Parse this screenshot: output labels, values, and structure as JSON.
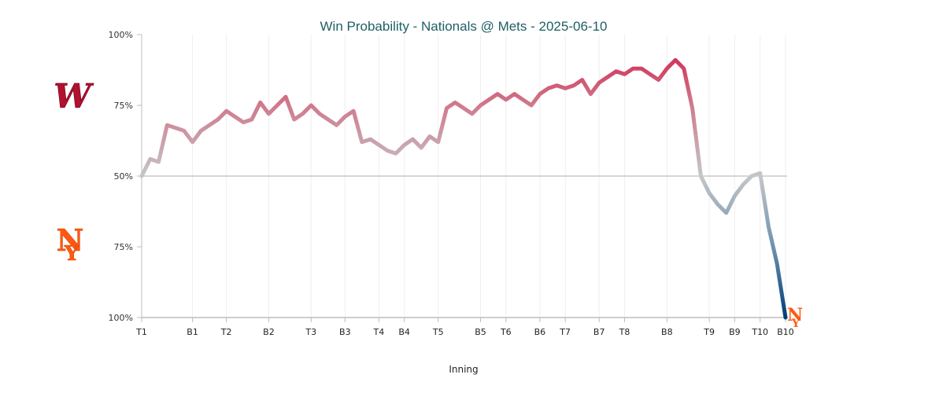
{
  "chart_data": {
    "type": "line",
    "title": "Win Probability - Nationals @ Mets - 2025-06-10",
    "xlabel": "Inning",
    "ylabel": "",
    "ylim": [
      0,
      100
    ],
    "ytick_labels": [
      "100%",
      "75%",
      "50%",
      "75%",
      "100%"
    ],
    "xtick_labels": [
      {
        "label": "T1",
        "x": 0
      },
      {
        "label": "B1",
        "x": 6
      },
      {
        "label": "T2",
        "x": 10
      },
      {
        "label": "B2",
        "x": 15
      },
      {
        "label": "T3",
        "x": 20
      },
      {
        "label": "B3",
        "x": 24
      },
      {
        "label": "T4",
        "x": 28
      },
      {
        "label": "B4",
        "x": 31
      },
      {
        "label": "T5",
        "x": 35
      },
      {
        "label": "B5",
        "x": 40
      },
      {
        "label": "T6",
        "x": 43
      },
      {
        "label": "B6",
        "x": 47
      },
      {
        "label": "T7",
        "x": 50
      },
      {
        "label": "B7",
        "x": 54
      },
      {
        "label": "T8",
        "x": 57
      },
      {
        "label": "B8",
        "x": 62
      },
      {
        "label": "T9",
        "x": 67
      },
      {
        "label": "B9",
        "x": 70
      },
      {
        "label": "T10",
        "x": 73
      },
      {
        "label": "B10",
        "x": 76
      }
    ],
    "grid": true,
    "teams": {
      "away": {
        "logo": "nationals-logo",
        "color": "#c41e3a"
      },
      "home": {
        "logo": "mets-logo",
        "color": "#ff5910"
      }
    },
    "colors": {
      "away": "#c8102e",
      "neutral": "#c4c4c4",
      "home": "#003f7f"
    },
    "series": [
      {
        "values": [
          50,
          56,
          55,
          68,
          67,
          66,
          62,
          66,
          68,
          70,
          73,
          71,
          69,
          70,
          76,
          72,
          75,
          78,
          70,
          72,
          75,
          72,
          70,
          68,
          71,
          73,
          62,
          63,
          61,
          59,
          58,
          61,
          63,
          60,
          64,
          62,
          74,
          76,
          74,
          72,
          75,
          77,
          79,
          77,
          79,
          77,
          75,
          79,
          81,
          82,
          81,
          82,
          84,
          79,
          83,
          85,
          87,
          86,
          88,
          88,
          86,
          84,
          88,
          91,
          88,
          74,
          50,
          44,
          40,
          37,
          43,
          47,
          50,
          51,
          32,
          19,
          0
        ]
      }
    ]
  }
}
